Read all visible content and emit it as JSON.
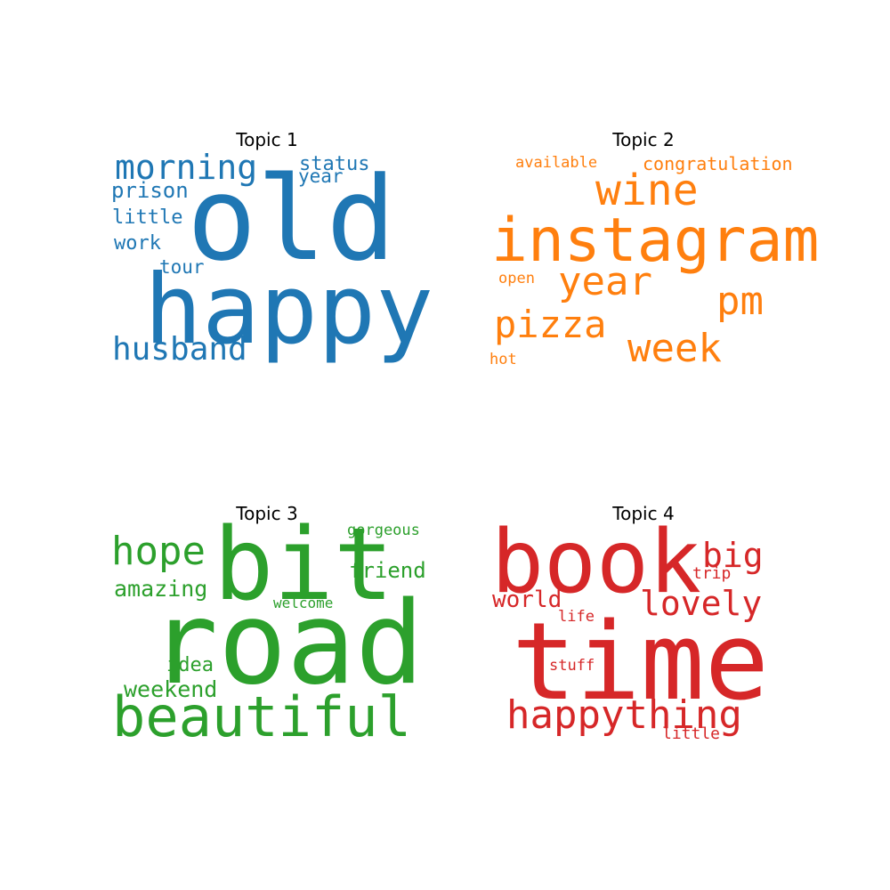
{
  "chart_data": {
    "type": "wordcloud",
    "panels": [
      {
        "title": "Topic 1",
        "color": "#1f77b4",
        "words": [
          "happy",
          "old",
          "husband",
          "morning",
          "prison",
          "little",
          "work",
          "status",
          "year",
          "tour"
        ],
        "weights": [
          1.0,
          0.93,
          0.42,
          0.42,
          0.3,
          0.28,
          0.28,
          0.28,
          0.25,
          0.25
        ]
      },
      {
        "title": "Topic 2",
        "color": "#ff7f0e",
        "words": [
          "instagram",
          "wine",
          "year",
          "pm",
          "week",
          "pizza",
          "congratulation",
          "available",
          "open",
          "hot"
        ],
        "weights": [
          1.0,
          0.65,
          0.58,
          0.58,
          0.58,
          0.56,
          0.27,
          0.24,
          0.24,
          0.24
        ]
      },
      {
        "title": "Topic 3",
        "color": "#2ca02c",
        "words": [
          "road",
          "bit",
          "beautiful",
          "hope",
          "amazing",
          "weekend",
          "friend",
          "idea",
          "gorgeous",
          "welcome"
        ],
        "weights": [
          1.0,
          0.9,
          0.58,
          0.46,
          0.28,
          0.28,
          0.28,
          0.24,
          0.19,
          0.18
        ]
      },
      {
        "title": "Topic 4",
        "color": "#d62728",
        "words": [
          "time",
          "book",
          "happything",
          "lovely",
          "big",
          "world",
          "stuff",
          "trip",
          "life",
          "little"
        ],
        "weights": [
          1.0,
          0.89,
          0.42,
          0.37,
          0.37,
          0.27,
          0.18,
          0.18,
          0.17,
          0.17
        ]
      }
    ]
  }
}
